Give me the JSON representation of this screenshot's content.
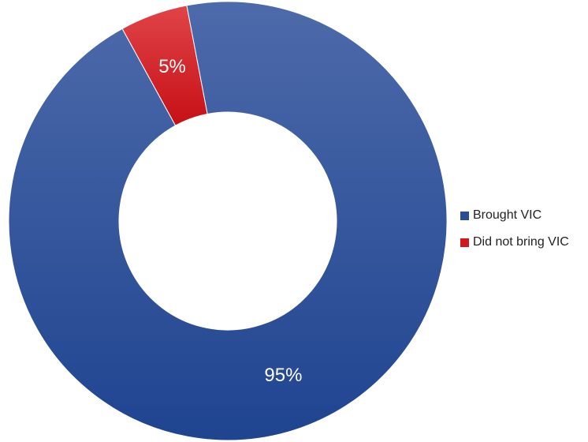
{
  "chart_data": {
    "type": "pie",
    "variant": "donut",
    "title": "",
    "categories": [
      "Brought VIC",
      "Did not bring VIC"
    ],
    "values": [
      95,
      5
    ],
    "data_labels": [
      "95%",
      "5%"
    ],
    "colors": [
      "#2a4d96",
      "#d0181e"
    ],
    "legend_position": "right"
  }
}
